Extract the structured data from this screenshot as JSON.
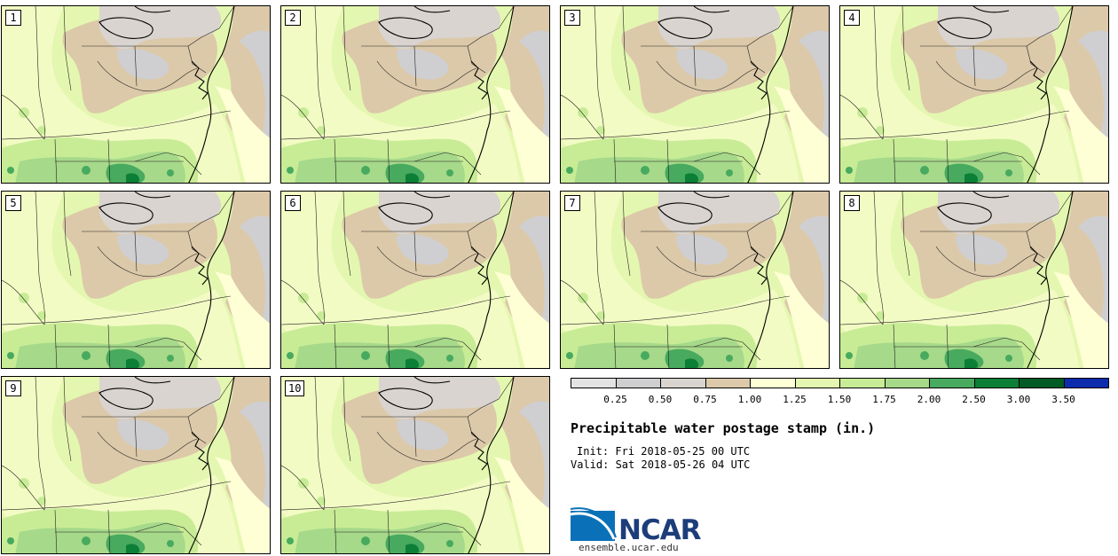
{
  "figure": {
    "title": "Precipitable water postage stamp (in.)",
    "init": "Init: Fri 2018-05-25 00 UTC",
    "valid": "Valid: Sat 2018-05-26 04 UTC",
    "website": "ensemble.ucar.edu",
    "logo_text": "NCAR"
  },
  "members": [
    "1",
    "2",
    "3",
    "4",
    "5",
    "6",
    "7",
    "8",
    "9",
    "10"
  ],
  "colorbar": {
    "ticks": [
      "0.25",
      "0.50",
      "0.75",
      "1.00",
      "1.25",
      "1.50",
      "1.75",
      "2.00",
      "2.50",
      "3.00",
      "3.50"
    ],
    "colors": [
      "#e2e2e2",
      "#cfcfd2",
      "#d9d4cf",
      "#dcc9a9",
      "#ffffd5",
      "#e4f7b0",
      "#c8ec96",
      "#a6d98a",
      "#48aa5e",
      "#0c7f36",
      "#005b25",
      "#0c2cad"
    ]
  },
  "chart_data": {
    "type": "heatmap",
    "title": "Precipitable water postage stamp (in.)",
    "variable": "Precipitable water",
    "units": "in.",
    "bounds": [
      0.25,
      0.5,
      0.75,
      1.0,
      1.25,
      1.5,
      1.75,
      2.0,
      2.5,
      3.0,
      3.5
    ],
    "ensemble_members": 10
  }
}
